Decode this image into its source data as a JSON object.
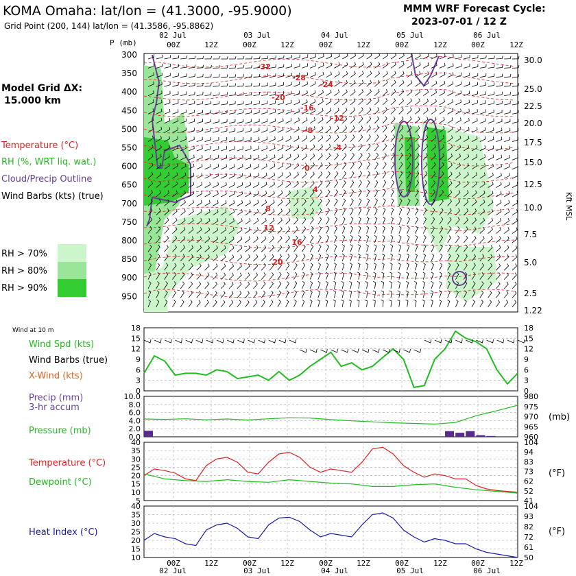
{
  "header": {
    "station": "KOMA Omaha:  lat/lon = (41.3000, -95.9000)",
    "grid_point": "Grid Point (200, 144) lat/lon = (41.3586, -95.8862)",
    "cycle_line1": "MMM WRF Forecast Cycle:",
    "cycle_line2": "2023-07-01 / 12  Z",
    "model_grid_line1": "Model Grid ΔX:",
    "model_grid_line2": "15.000 km"
  },
  "colors": {
    "temperature": "#e02020",
    "rh": "#22bb22",
    "cloud": "#6a3d9a",
    "wind": "#000000",
    "xwind": "#e06020",
    "dewpoint": "#22bb22",
    "heat_index": "#1a1aa0",
    "precip": "#5a2a8a",
    "rh70": "#ccf5cc",
    "rh80": "#99e699",
    "rh90": "#33cc33"
  },
  "time_axis": {
    "ticks": [
      "00Z",
      "12Z",
      "00Z",
      "12Z",
      "00Z",
      "12Z",
      "00Z",
      "12Z",
      "00Z",
      "12Z"
    ],
    "days": [
      "02 Jul",
      "03 Jul",
      "04 Jul",
      "05 Jul",
      "06 Jul"
    ]
  },
  "legend": {
    "temperature": "Temperature (°C)",
    "rh": "RH (%, WRT liq. wat.)",
    "cloud": "Cloud/Precip Outline",
    "wind": "Wind Barbs (kts) (true)",
    "rh70": "RH > 70%",
    "rh80": "RH > 80%",
    "rh90": "RH > 90%"
  },
  "chart_data": [
    {
      "type": "heatmap",
      "panel": "cross-section",
      "ylabel": "P (mb)",
      "right_label": "Kft MSL",
      "pressure_ticks": [
        "300",
        "350",
        "400",
        "450",
        "500",
        "550",
        "600",
        "650",
        "700",
        "750",
        "800",
        "850",
        "900",
        "950"
      ],
      "height_ticks": [
        "30.0",
        "25.0",
        "22.5",
        "20.0",
        "17.5",
        "15.0",
        "12.5",
        "10.0",
        "7.5",
        "5.0",
        "2.5",
        "1.22"
      ],
      "isotherm_labels": [
        "-32",
        "-28",
        "-24",
        "-20",
        "-16",
        "-12",
        "-8",
        "-4",
        "0",
        "4",
        "8",
        "12",
        "16",
        "20"
      ]
    },
    {
      "type": "line",
      "panel": "wind",
      "title": "Wind at 10 m",
      "labels": [
        "Wind Spd (kts)",
        "Wind Barbs (true)",
        "X-Wind (kts)"
      ],
      "ticks_left": [
        "18",
        "15",
        "12",
        "9",
        "6",
        "3",
        "0"
      ],
      "ticks_right": [
        "18",
        "15",
        "12",
        "9",
        "6",
        "3",
        "0"
      ],
      "ylim": [
        0,
        18
      ],
      "series": [
        {
          "name": "Wind Spd (kts)",
          "x": [
            0,
            3,
            6,
            9,
            12,
            15,
            18,
            21,
            24,
            27,
            30,
            33,
            36,
            39,
            42,
            45,
            48,
            51,
            54,
            57,
            60,
            63,
            66,
            69,
            72,
            75,
            78,
            81,
            84,
            87,
            90,
            93,
            96,
            99,
            102,
            105,
            108
          ],
          "values": [
            5,
            10,
            8.5,
            4.5,
            5,
            5,
            4.5,
            6,
            5.5,
            3.5,
            4,
            4.5,
            3,
            5.5,
            3,
            4.5,
            7,
            9,
            11,
            7,
            8,
            6,
            7,
            9.5,
            12,
            9,
            1,
            1.5,
            9,
            12,
            17,
            15,
            14,
            12,
            6,
            2,
            5
          ]
        }
      ]
    },
    {
      "type": "bar",
      "panel": "precip-pressure",
      "labels": [
        "Precip (mm)",
        "3-hr accum",
        "Pressure (mb)"
      ],
      "ticks_left": [
        "10.0",
        "8.0",
        "6.0",
        "4.0",
        "2.0",
        "0.0"
      ],
      "ticks_right": [
        "980",
        "975",
        "970",
        "965",
        "960"
      ],
      "right_unit": "(mb)",
      "ylim": [
        0,
        10
      ],
      "y2lim": [
        960,
        980
      ],
      "series": [
        {
          "name": "Precip (mm)",
          "x": [
            0,
            87,
            90,
            93,
            96,
            99
          ],
          "values": [
            1.5,
            1.4,
            1.0,
            1.4,
            0.4,
            0.2
          ]
        },
        {
          "name": "Pressure (mb)",
          "x": [
            0,
            6,
            12,
            18,
            24,
            30,
            36,
            42,
            48,
            54,
            60,
            66,
            72,
            78,
            84,
            90,
            96,
            102,
            108
          ],
          "values": [
            968.8,
            968.6,
            968.9,
            968.4,
            968.8,
            968.3,
            968.9,
            969.4,
            969.3,
            968.5,
            967.9,
            967.4,
            966.9,
            966.6,
            966.3,
            967.1,
            970.4,
            972.9,
            975.6
          ]
        }
      ]
    },
    {
      "type": "line",
      "panel": "temperature",
      "labels": [
        "Temperature (°C)",
        "Dewpoint (°C)"
      ],
      "ticks_left": [
        "40",
        "35",
        "30",
        "25",
        "20",
        "15",
        "10",
        "5"
      ],
      "ticks_right": [
        "104",
        "94",
        "83",
        "73",
        "62",
        "52",
        "41"
      ],
      "right_unit": "(°F)",
      "ylim": [
        5,
        40
      ],
      "series": [
        {
          "name": "Temperature (°C)",
          "x": [
            0,
            3,
            6,
            9,
            12,
            15,
            18,
            21,
            24,
            27,
            30,
            33,
            36,
            39,
            42,
            45,
            48,
            51,
            54,
            57,
            60,
            63,
            66,
            69,
            72,
            75,
            78,
            81,
            84,
            87,
            90,
            93,
            96,
            99,
            102,
            105,
            108
          ],
          "values": [
            20,
            24,
            23,
            21.5,
            18,
            17,
            26,
            30,
            31,
            28,
            22,
            21,
            28,
            33,
            34,
            31,
            25,
            22,
            24,
            23,
            22,
            28,
            36,
            37,
            33,
            26,
            22,
            19,
            21,
            20,
            18,
            18,
            14,
            12,
            11,
            10.5,
            10
          ]
        },
        {
          "name": "Dewpoint (°C)",
          "x": [
            0,
            6,
            12,
            18,
            24,
            30,
            36,
            42,
            48,
            54,
            60,
            66,
            72,
            78,
            84,
            90,
            96,
            102,
            108
          ],
          "values": [
            21,
            18,
            17,
            16.5,
            17.5,
            16.5,
            16,
            17.5,
            16.5,
            15.5,
            15,
            13.5,
            13.5,
            14.5,
            15,
            13,
            11.5,
            10.5,
            9.5
          ]
        }
      ]
    },
    {
      "type": "line",
      "panel": "heat-index",
      "labels": [
        "Heat Index (°C)"
      ],
      "ticks_left": [
        "40",
        "35",
        "30",
        "25",
        "20",
        "15",
        "10"
      ],
      "ticks_right": [
        "104",
        "93",
        "82",
        "72",
        "61",
        "50"
      ],
      "right_unit": "(°F)",
      "ylim": [
        10,
        40
      ],
      "series": [
        {
          "name": "Heat Index (°C)",
          "x": [
            0,
            3,
            6,
            9,
            12,
            15,
            18,
            21,
            24,
            27,
            30,
            33,
            36,
            39,
            42,
            45,
            48,
            51,
            54,
            57,
            60,
            63,
            66,
            69,
            72,
            75,
            78,
            81,
            84,
            87,
            90,
            93,
            96,
            99,
            102,
            105,
            108
          ],
          "values": [
            20,
            24,
            22,
            21,
            18,
            17,
            26,
            29,
            30,
            27,
            22,
            21,
            29,
            33,
            33.5,
            31,
            26,
            22,
            24,
            23,
            22,
            29,
            35,
            36,
            33,
            26,
            22,
            19,
            21,
            20,
            18,
            18,
            15,
            13,
            12,
            11,
            10
          ]
        }
      ]
    }
  ]
}
